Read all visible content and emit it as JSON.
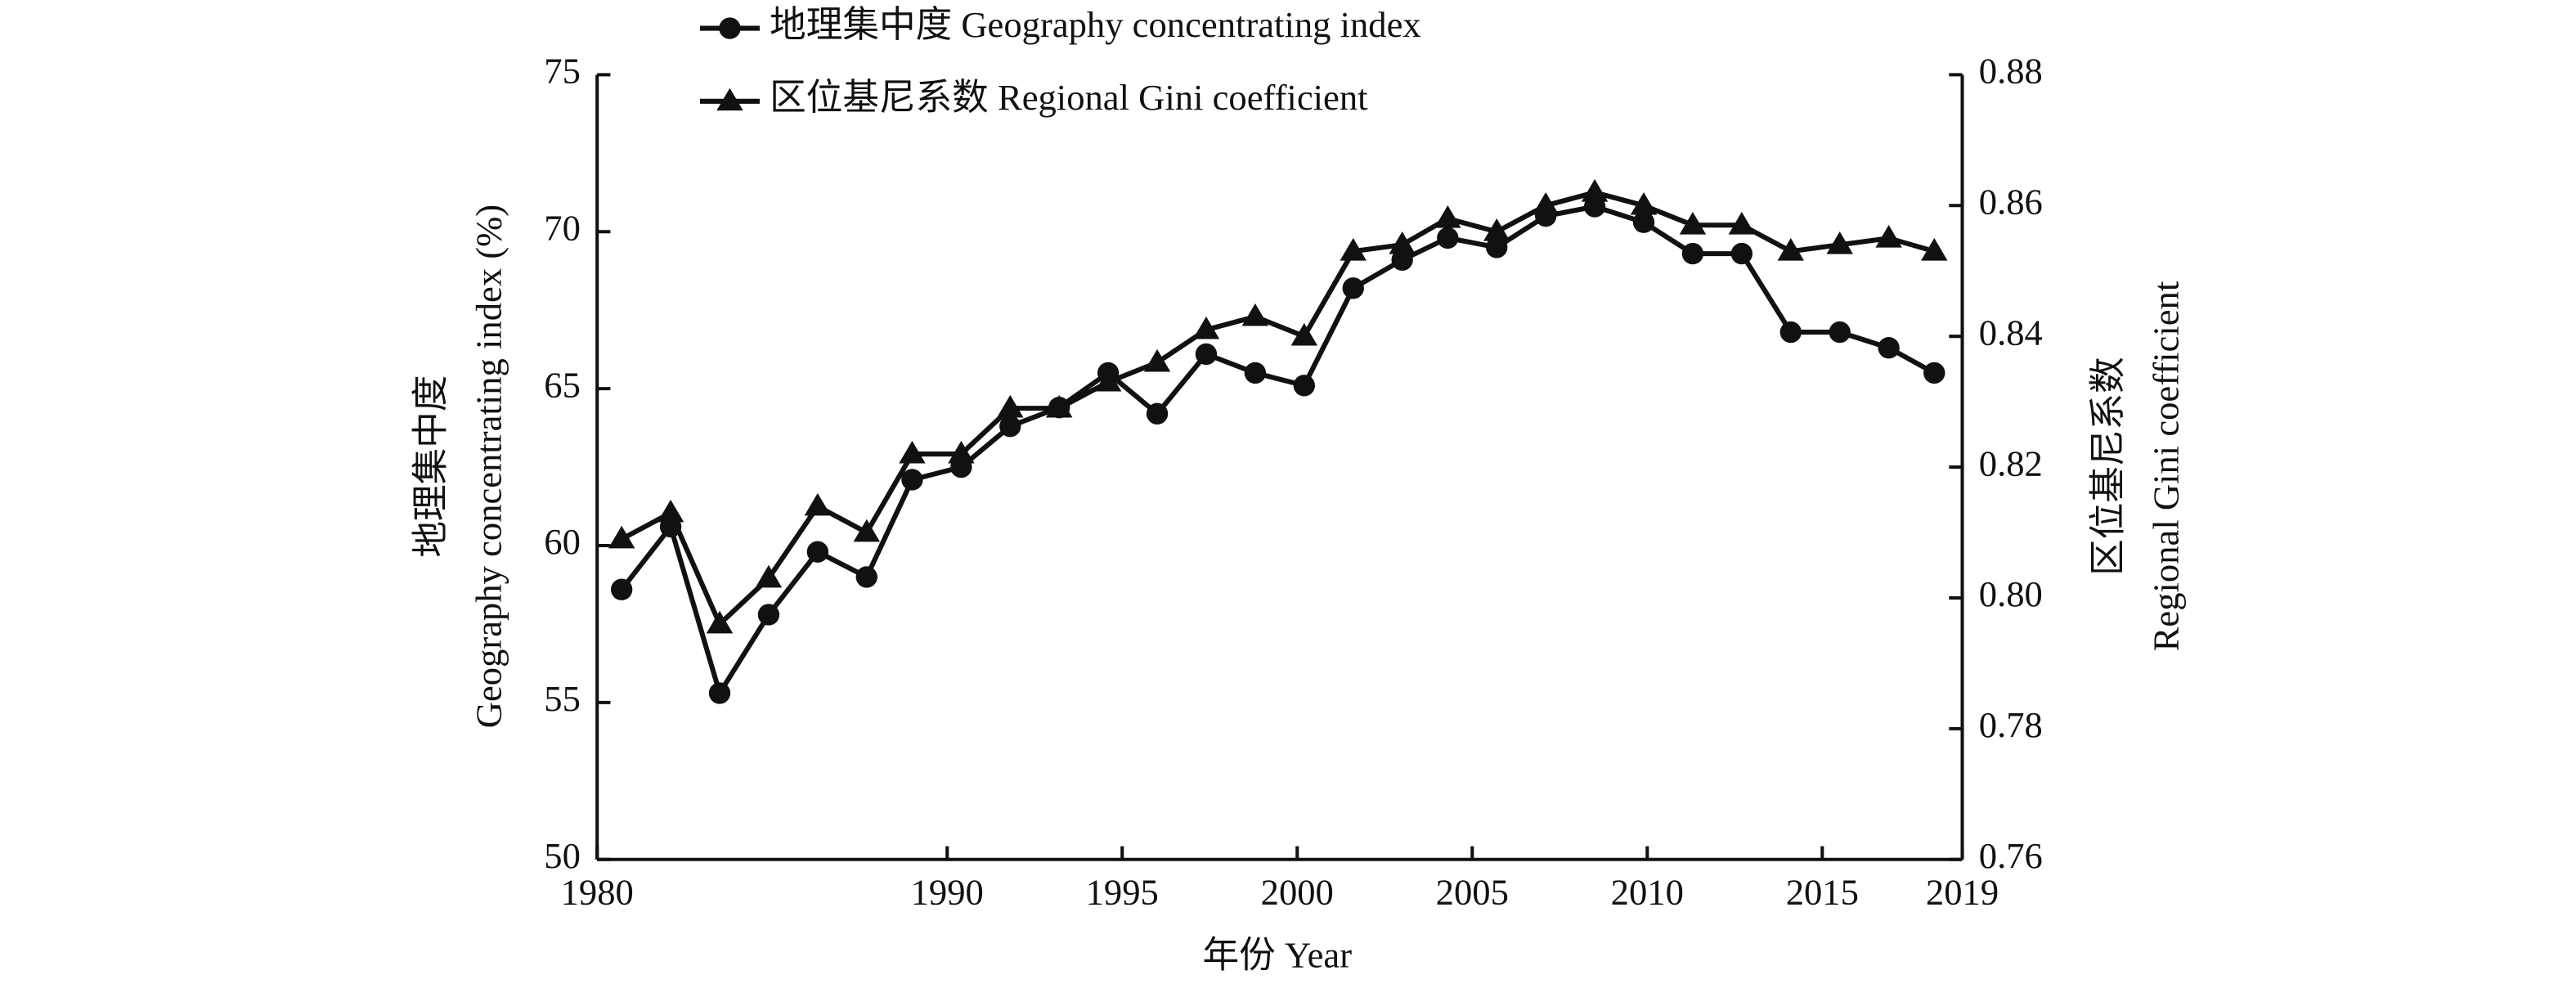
{
  "chart_data": {
    "type": "line",
    "xlabel": "年份 Year",
    "ylabel": [
      "地理集中度",
      "Geography concentrating index (%)"
    ],
    "y2label": [
      "区位基尼系数",
      "Regional Gini coefficient"
    ],
    "x": [
      1980.7,
      1982.1,
      1983.5,
      1984.9,
      1986.3,
      1987.7,
      1989.0,
      1990.4,
      1991.8,
      1993.2,
      1994.6,
      1996.0,
      1997.4,
      1998.8,
      2000.2,
      2001.6,
      2003.0,
      2004.3,
      2005.7,
      2007.1,
      2008.5,
      2009.9,
      2011.3,
      2012.7,
      2014.1,
      2015.5,
      2016.9,
      2018.2
    ],
    "series": [
      {
        "name": "地理集中度 Geography concentrating index",
        "color": "#111111",
        "marker": "circle",
        "values": [
          58.6,
          60.6,
          55.3,
          57.8,
          59.8,
          59.0,
          62.1,
          62.5,
          63.8,
          64.4,
          65.5,
          64.2,
          66.1,
          65.5,
          65.1,
          68.2,
          69.1,
          69.8,
          69.5,
          70.5,
          70.8,
          70.3,
          69.3,
          69.3,
          66.8,
          66.8,
          66.3,
          65.5
        ]
      },
      {
        "name": "区位基尼系数 Regional Gini coefficient",
        "color": "#111111",
        "marker": "triangle",
        "axis": "y2",
        "values": [
          0.809,
          0.813,
          0.796,
          0.803,
          0.814,
          0.81,
          0.822,
          0.822,
          0.829,
          0.829,
          0.833,
          0.836,
          0.841,
          0.843,
          0.84,
          0.853,
          0.854,
          0.858,
          0.856,
          0.86,
          0.862,
          0.86,
          0.857,
          0.857,
          0.853,
          0.854,
          0.855,
          0.853
        ]
      }
    ],
    "xlim": [
      1980,
      2019
    ],
    "xticks": [
      1980,
      1990,
      1995,
      2000,
      2005,
      2010,
      2015,
      2019
    ],
    "ylim": [
      50,
      75
    ],
    "yticks": [
      50,
      55,
      60,
      65,
      70,
      75
    ],
    "y2lim": [
      0.76,
      0.88
    ],
    "y2ticks": [
      0.76,
      0.78,
      {
        "value": 0.8,
        "label": "0.80"
      },
      0.82,
      0.84,
      0.86,
      0.88
    ],
    "legend": "upper left"
  }
}
